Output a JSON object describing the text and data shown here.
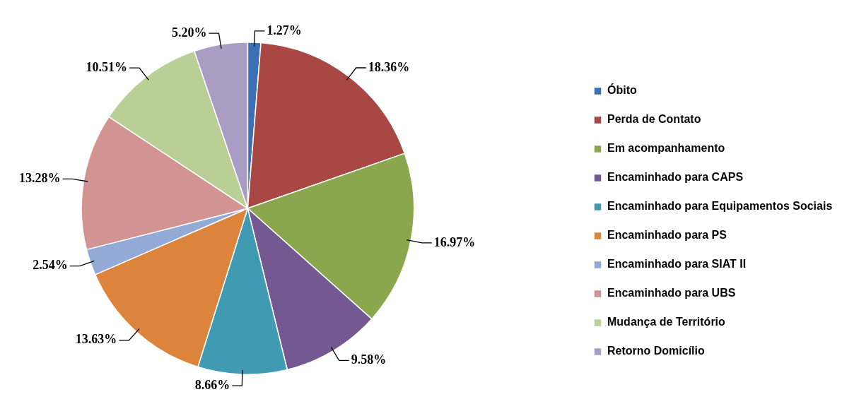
{
  "chart_data": {
    "type": "pie",
    "categories": [
      "Óbito",
      "Perda de Contato",
      "Em acompanhamento",
      "Encaminhado para CAPS",
      "Encaminhado para Equipamentos Sociais",
      "Encaminhado para PS",
      "Encaminhado para SIAT II",
      "Encaminhado para UBS",
      "Mudança de Território",
      "Retorno Domicílio"
    ],
    "values": [
      1.27,
      18.36,
      16.97,
      9.58,
      8.66,
      13.63,
      2.54,
      13.28,
      10.51,
      5.2
    ],
    "value_labels": [
      "1.27%",
      "18.36%",
      "16.97%",
      "9.58%",
      "8.66%",
      "13.63%",
      "2.54%",
      "13.28%",
      "10.51%",
      "5.20%"
    ],
    "colors": [
      "#3b6fb6",
      "#a94744",
      "#8aa74e",
      "#735891",
      "#3f9ab2",
      "#dd843c",
      "#93a9d6",
      "#d29493",
      "#b9cf96",
      "#aa9cc2"
    ],
    "legend": "right"
  }
}
